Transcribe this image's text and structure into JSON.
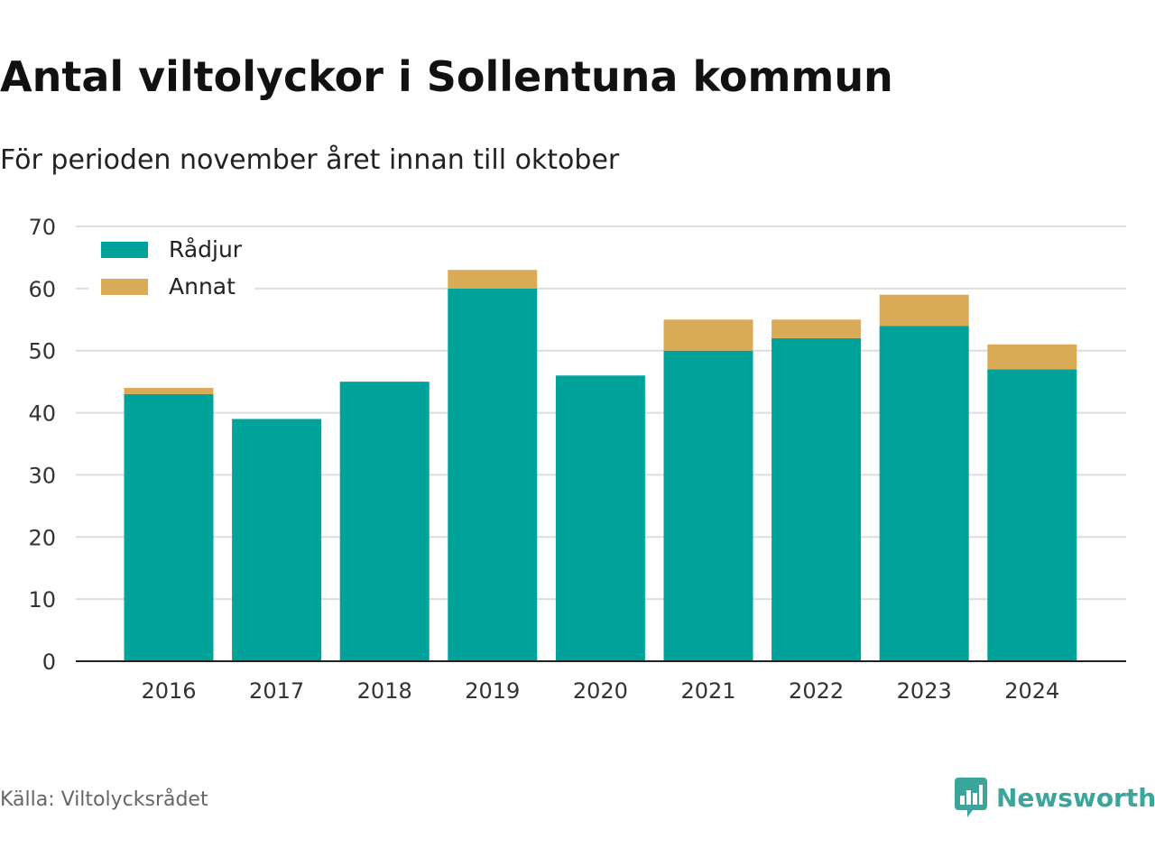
{
  "header": {
    "title": "Antal viltolyckor i Sollentuna kommun",
    "subtitle": "För perioden november året innan till oktober"
  },
  "footer": {
    "source": "Källa: Viltolycksrådet",
    "brand": "Newsworthy",
    "brand_icon": "bar-chart-speech-bubble-icon"
  },
  "colors": {
    "radjur": "#00a39a",
    "annat": "#d9ab57",
    "grid": "#dddddd",
    "axis": "#222222",
    "brand": "#3aa59a"
  },
  "chart_data": {
    "type": "bar",
    "stacked": true,
    "categories": [
      "2016",
      "2017",
      "2018",
      "2019",
      "2020",
      "2021",
      "2022",
      "2023",
      "2024"
    ],
    "series": [
      {
        "name": "Rådjur",
        "values": [
          43,
          39,
          45,
          60,
          46,
          50,
          52,
          54,
          47
        ]
      },
      {
        "name": "Annat",
        "values": [
          1,
          0,
          0,
          3,
          0,
          5,
          3,
          5,
          4
        ]
      }
    ],
    "ylim": [
      0,
      70
    ],
    "yticks": [
      0,
      10,
      20,
      30,
      40,
      50,
      60,
      70
    ],
    "grid": true,
    "legend": "top-left"
  }
}
